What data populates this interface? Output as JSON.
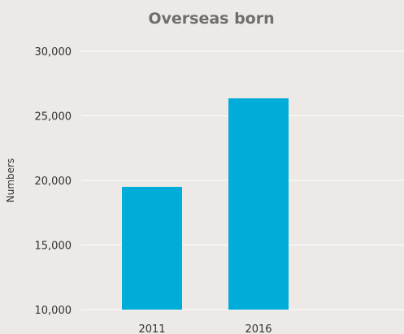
{
  "chart_data": {
    "type": "bar",
    "title": "Overseas born",
    "xlabel": "",
    "ylabel": "Numbers",
    "categories": [
      "2011",
      "2016"
    ],
    "values": [
      19500,
      26350
    ],
    "ylim": [
      10000,
      30000
    ],
    "yticks": [
      10000,
      15000,
      20000,
      25000,
      30000
    ],
    "ytick_labels": [
      "10,000",
      "15,000",
      "20,000",
      "25,000",
      "30,000"
    ],
    "grid": true,
    "legend": "none",
    "colors": {
      "bar": "#00acd8",
      "background": "#ece9e6",
      "grid": "#ffffff",
      "title": "#6e6e6e",
      "text": "#333333"
    }
  }
}
